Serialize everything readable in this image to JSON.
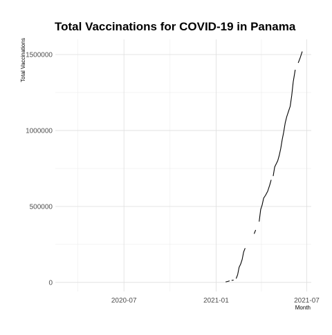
{
  "chart_data": {
    "type": "line",
    "title": "Total Vaccinations for COVID-19 in Panama",
    "xlabel": "Month",
    "ylabel": "Total Vaccinations",
    "x_ticks": [
      {
        "date": "2020-07-01",
        "label": "2020-07"
      },
      {
        "date": "2021-01-01",
        "label": "2021-01"
      },
      {
        "date": "2021-07-01",
        "label": "2021-07"
      }
    ],
    "y_ticks": [
      {
        "value": 0,
        "label": "0"
      },
      {
        "value": 500000,
        "label": "500000"
      },
      {
        "value": 1000000,
        "label": "1000000"
      },
      {
        "value": 1500000,
        "label": "1500000"
      }
    ],
    "xlim": [
      "2020-02-15",
      "2021-07-10"
    ],
    "ylim": [
      -60000,
      1600000
    ],
    "grid": true,
    "line_color": "#000000",
    "series": [
      {
        "segments": [
          [
            [
              "2021-01-20",
              3000
            ],
            [
              "2021-01-24",
              6000
            ],
            [
              "2021-01-28",
              10000
            ]
          ],
          [
            [
              "2021-02-01",
              13000
            ],
            [
              "2021-02-05",
              15000
            ]
          ],
          [
            [
              "2021-02-10",
              25000
            ],
            [
              "2021-02-13",
              50000
            ],
            [
              "2021-02-16",
              100000
            ],
            [
              "2021-02-19",
              120000
            ],
            [
              "2021-02-22",
              150000
            ],
            [
              "2021-02-25",
              200000
            ],
            [
              "2021-02-28",
              225000
            ]
          ],
          [
            [
              "2021-03-18",
              320000
            ],
            [
              "2021-03-21",
              345000
            ]
          ],
          [
            [
              "2021-03-28",
              400000
            ],
            [
              "2021-03-31",
              480000
            ],
            [
              "2021-04-03",
              510000
            ],
            [
              "2021-04-06",
              555000
            ],
            [
              "2021-04-10",
              575000
            ],
            [
              "2021-04-14",
              600000
            ],
            [
              "2021-04-18",
              640000
            ],
            [
              "2021-04-21",
              675000
            ]
          ],
          [
            [
              "2021-04-25",
              700000
            ],
            [
              "2021-04-28",
              760000
            ],
            [
              "2021-05-01",
              780000
            ],
            [
              "2021-05-04",
              800000
            ],
            [
              "2021-05-07",
              835000
            ],
            [
              "2021-05-10",
              880000
            ],
            [
              "2021-05-13",
              940000
            ],
            [
              "2021-05-16",
              990000
            ],
            [
              "2021-05-19",
              1050000
            ],
            [
              "2021-05-22",
              1090000
            ],
            [
              "2021-05-26",
              1130000
            ],
            [
              "2021-05-29",
              1160000
            ],
            [
              "2021-06-01",
              1230000
            ],
            [
              "2021-06-04",
              1320000
            ],
            [
              "2021-06-08",
              1400000
            ]
          ],
          [
            [
              "2021-06-14",
              1445000
            ],
            [
              "2021-06-18",
              1480000
            ],
            [
              "2021-06-22",
              1520000
            ]
          ]
        ]
      }
    ]
  }
}
